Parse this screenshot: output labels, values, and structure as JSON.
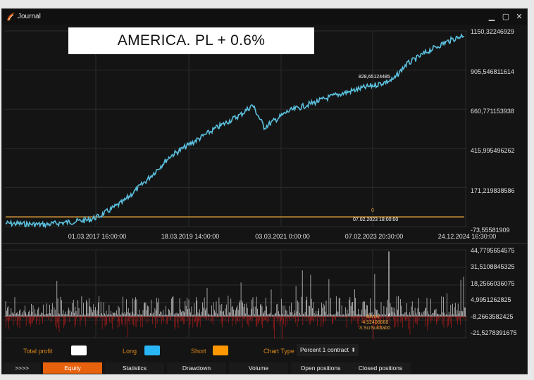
{
  "window": {
    "title": "Journal"
  },
  "window_controls": {
    "minimize": "▁",
    "maximize": "▢",
    "close": "✕"
  },
  "banner": {
    "text": "AMERICA. PL + 0.6%"
  },
  "chart_data": [
    {
      "type": "line",
      "title": "",
      "x_ticks": [
        "01.03.2017 16:00:00",
        "18.03.2019 14:00:00",
        "03.03.2021 0:00:00",
        "07.02.2023 20:30:00",
        "24.12.2024 16:30:00"
      ],
      "y_ticks": [
        "1150,32246929",
        "905,546811614",
        "660,771153938",
        "415,995496262",
        "171,219838586",
        "-73,55581909"
      ],
      "ylim": [
        -73.55581909,
        1150.32246929
      ],
      "grid": true,
      "series": [
        {
          "color": "#5bc0de",
          "x": [
            "2015-03",
            "2015-09",
            "2016-01",
            "2016-06",
            "2016-12",
            "2017-03",
            "2017-09",
            "2018-03",
            "2018-09",
            "2019-03",
            "2019-09",
            "2020-03",
            "2020-06",
            "2020-09",
            "2021-03",
            "2021-09",
            "2022-03",
            "2022-09",
            "2023-02",
            "2023-06",
            "2023-09",
            "2024-03",
            "2024-07",
            "2024-12"
          ],
          "values": [
            -40,
            -45,
            -48,
            -35,
            -20,
            5,
            95,
            230,
            380,
            470,
            560,
            640,
            700,
            560,
            660,
            710,
            760,
            800,
            830,
            860,
            950,
            1040,
            1090,
            1140
          ]
        },
        {
          "color": "#e8a33c",
          "x": [
            "2015-03",
            "2024-12"
          ],
          "values": [
            0,
            0
          ]
        }
      ],
      "annotations": [
        {
          "text": "828,65124485",
          "x": "2023-02",
          "y": 828.65
        },
        {
          "text": "0",
          "x": "2023-02",
          "y": 0
        },
        {
          "text": "07.02.2023 18:00:00",
          "x": "2023-02",
          "y": 0
        }
      ]
    },
    {
      "type": "bar",
      "title": "",
      "y_ticks": [
        "44,7795654575",
        "31,5108845325",
        "18,2566036075",
        "4,9951262825",
        "-8,2663582425",
        "-21,5278391675"
      ],
      "ylim": [
        -21.5278391675,
        44.7795654575
      ],
      "grid": true,
      "series": [
        {
          "name": "Long",
          "color": "#ffffff"
        },
        {
          "name": "Short",
          "color": "#b11a1a"
        }
      ],
      "annotations": [
        {
          "text": "BA txt",
          "y": -8.5
        },
        {
          "text": "-4,52406668",
          "y": -10.5
        },
        {
          "text": "3.ScrSuldtab0",
          "y": -12.5
        }
      ]
    }
  ],
  "legend": {
    "total_profit": {
      "label": "Total profit",
      "color": "#ffffff"
    },
    "long": {
      "label": "Long",
      "color": "#29b6f6"
    },
    "short": {
      "label": "Short",
      "color": "#ff9800"
    }
  },
  "chart_type": {
    "label": "Chart Type",
    "value": "Percent 1 contract"
  },
  "tabs": [
    {
      "label": ">>>>",
      "active": false
    },
    {
      "label": "Equity",
      "active": true
    },
    {
      "label": "Statistics",
      "active": false
    },
    {
      "label": "Drawdown",
      "active": false
    },
    {
      "label": "Volume",
      "active": false
    },
    {
      "label": "Open positions",
      "active": false
    },
    {
      "label": "Closed positions",
      "active": false
    }
  ]
}
